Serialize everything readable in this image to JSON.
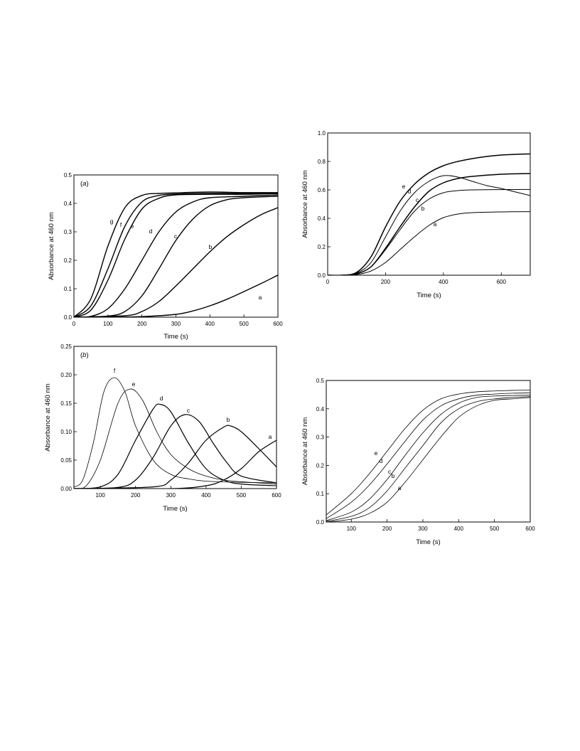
{
  "chart_data": [
    {
      "type": "line",
      "panel_label": "a",
      "xlabel": "Time (s)",
      "ylabel": "Absorbance at 460 nm",
      "xlim": [
        0,
        600
      ],
      "ylim": [
        0,
        0.5
      ],
      "xticks": [
        "0",
        "100",
        "200",
        "300",
        "400",
        "500",
        "600"
      ],
      "yticks": [
        "0.0",
        "0.1",
        "0.2",
        "0.3",
        "0.4",
        "0.5"
      ],
      "grid": false,
      "series": [
        {
          "name": "a",
          "x": [
            0,
            100,
            200,
            300,
            350,
            400,
            450,
            500,
            550,
            600
          ],
          "y": [
            0,
            0,
            0.002,
            0.01,
            0.022,
            0.04,
            0.063,
            0.09,
            0.118,
            0.148
          ]
        },
        {
          "name": "b",
          "x": [
            0,
            150,
            200,
            250,
            300,
            350,
            400,
            450,
            500,
            550,
            600
          ],
          "y": [
            0,
            0.005,
            0.02,
            0.055,
            0.11,
            0.17,
            0.23,
            0.283,
            0.325,
            0.36,
            0.385
          ]
        },
        {
          "name": "c",
          "x": [
            0,
            100,
            150,
            200,
            250,
            300,
            350,
            400,
            450,
            500,
            600
          ],
          "y": [
            0,
            0.004,
            0.02,
            0.075,
            0.17,
            0.27,
            0.345,
            0.392,
            0.413,
            0.42,
            0.425
          ]
        },
        {
          "name": "d",
          "x": [
            0,
            50,
            100,
            150,
            200,
            250,
            300,
            350,
            400,
            500,
            600
          ],
          "y": [
            0,
            0.003,
            0.03,
            0.1,
            0.2,
            0.3,
            0.37,
            0.405,
            0.42,
            0.425,
            0.43
          ]
        },
        {
          "name": "e",
          "x": [
            0,
            50,
            100,
            150,
            200,
            250,
            300,
            400,
            500,
            600
          ],
          "y": [
            0,
            0.025,
            0.13,
            0.275,
            0.38,
            0.418,
            0.43,
            0.432,
            0.432,
            0.435
          ]
        },
        {
          "name": "f",
          "x": [
            0,
            50,
            100,
            150,
            200,
            250,
            300,
            400,
            500,
            600
          ],
          "y": [
            0,
            0.04,
            0.17,
            0.32,
            0.405,
            0.428,
            0.433,
            0.435,
            0.435,
            0.435
          ]
        },
        {
          "name": "g",
          "x": [
            0,
            50,
            100,
            150,
            200,
            250,
            300,
            400,
            500,
            600
          ],
          "y": [
            0,
            0.065,
            0.25,
            0.385,
            0.428,
            0.435,
            0.437,
            0.44,
            0.438,
            0.438
          ]
        }
      ]
    },
    {
      "type": "line",
      "panel_label": "",
      "xlabel": "Time (s)",
      "ylabel": "Absorbance at 460 nm",
      "xlim": [
        0,
        700
      ],
      "ylim": [
        0,
        1.0
      ],
      "xticks": [
        "0",
        "200",
        "400",
        "600"
      ],
      "yticks": [
        "0.0",
        "0.2",
        "0.4",
        "0.6",
        "0.8",
        "1.0"
      ],
      "grid": false,
      "series": [
        {
          "name": "a",
          "x": [
            0,
            50,
            100,
            150,
            200,
            250,
            300,
            350,
            400,
            450,
            500,
            600,
            700
          ],
          "y": [
            0,
            0,
            0.005,
            0.03,
            0.09,
            0.18,
            0.27,
            0.35,
            0.405,
            0.43,
            0.44,
            0.445,
            0.447
          ]
        },
        {
          "name": "b",
          "x": [
            0,
            50,
            100,
            150,
            200,
            250,
            300,
            350,
            400,
            450,
            500,
            600,
            700
          ],
          "y": [
            0,
            0,
            0.01,
            0.06,
            0.18,
            0.32,
            0.45,
            0.535,
            0.58,
            0.595,
            0.6,
            0.602,
            0.603
          ]
        },
        {
          "name": "c",
          "x": [
            0,
            50,
            100,
            150,
            200,
            250,
            300,
            350,
            400,
            450,
            500,
            600,
            700
          ],
          "y": [
            0,
            0,
            0.01,
            0.06,
            0.19,
            0.34,
            0.48,
            0.59,
            0.65,
            0.68,
            0.695,
            0.71,
            0.715
          ]
        },
        {
          "name": "d",
          "x": [
            0,
            50,
            100,
            150,
            200,
            250,
            300,
            350,
            400,
            450,
            500,
            550,
            600,
            650,
            700
          ],
          "y": [
            0,
            0,
            0.015,
            0.09,
            0.27,
            0.45,
            0.58,
            0.66,
            0.7,
            0.69,
            0.66,
            0.63,
            0.61,
            0.585,
            0.56
          ]
        },
        {
          "name": "e",
          "x": [
            0,
            50,
            100,
            150,
            200,
            250,
            300,
            350,
            400,
            450,
            500,
            550,
            600,
            650,
            700
          ],
          "y": [
            0,
            0,
            0.02,
            0.13,
            0.34,
            0.52,
            0.64,
            0.72,
            0.77,
            0.8,
            0.82,
            0.835,
            0.845,
            0.85,
            0.853
          ]
        }
      ]
    },
    {
      "type": "line",
      "panel_label": "b",
      "xlabel": "Time (s)",
      "ylabel": "Absorbance at 460 nm",
      "xlim": [
        25,
        600
      ],
      "ylim": [
        0,
        0.25
      ],
      "xticks": [
        "100",
        "200",
        "300",
        "400",
        "500",
        "600"
      ],
      "yticks": [
        "0.00",
        "0.05",
        "0.10",
        "0.15",
        "0.20",
        "0.25"
      ],
      "grid": false,
      "series": [
        {
          "name": "a",
          "x": [
            25,
            300,
            400,
            450,
            500,
            550,
            600
          ],
          "y": [
            0,
            0,
            0.005,
            0.015,
            0.035,
            0.065,
            0.085
          ]
        },
        {
          "name": "b",
          "x": [
            25,
            250,
            300,
            350,
            400,
            450,
            470,
            500,
            550,
            600
          ],
          "y": [
            0,
            0.003,
            0.015,
            0.045,
            0.085,
            0.108,
            0.11,
            0.1,
            0.07,
            0.038
          ]
        },
        {
          "name": "c",
          "x": [
            25,
            150,
            200,
            250,
            300,
            340,
            380,
            420,
            460,
            500,
            600
          ],
          "y": [
            0,
            0.002,
            0.015,
            0.055,
            0.11,
            0.13,
            0.118,
            0.08,
            0.045,
            0.022,
            0.01
          ]
        },
        {
          "name": "d",
          "x": [
            25,
            100,
            150,
            200,
            250,
            270,
            300,
            350,
            400,
            450,
            500,
            600
          ],
          "y": [
            0,
            0.003,
            0.025,
            0.085,
            0.14,
            0.148,
            0.135,
            0.08,
            0.035,
            0.015,
            0.008,
            0.005
          ]
        },
        {
          "name": "e",
          "x": [
            25,
            60,
            100,
            150,
            185,
            220,
            260,
            300,
            350,
            400,
            450,
            500,
            600
          ],
          "y": [
            0,
            0.005,
            0.05,
            0.15,
            0.175,
            0.155,
            0.1,
            0.06,
            0.035,
            0.022,
            0.015,
            0.012,
            0.008
          ]
        },
        {
          "name": "f",
          "x": [
            25,
            50,
            80,
            110,
            140,
            170,
            200,
            250,
            300,
            350,
            400,
            500,
            600
          ],
          "y": [
            0.003,
            0.015,
            0.08,
            0.17,
            0.195,
            0.17,
            0.11,
            0.05,
            0.025,
            0.017,
            0.013,
            0.011,
            0.01
          ]
        }
      ]
    },
    {
      "type": "line",
      "panel_label": "",
      "xlabel": "Time (s)",
      "ylabel": "Absorbance at 460 nm",
      "xlim": [
        30,
        600
      ],
      "ylim": [
        0,
        0.5
      ],
      "xticks": [
        "100",
        "200",
        "300",
        "400",
        "500",
        "600"
      ],
      "yticks": [
        "0.0",
        "0.1",
        "0.2",
        "0.3",
        "0.4",
        "0.5"
      ],
      "grid": false,
      "series": [
        {
          "name": "a",
          "x": [
            30,
            100,
            150,
            200,
            250,
            300,
            350,
            400,
            450,
            500,
            550,
            600
          ],
          "y": [
            0,
            0.01,
            0.03,
            0.07,
            0.14,
            0.22,
            0.3,
            0.37,
            0.41,
            0.43,
            0.435,
            0.44
          ]
        },
        {
          "name": "b",
          "x": [
            30,
            100,
            150,
            200,
            250,
            300,
            350,
            400,
            450,
            500,
            550,
            600
          ],
          "y": [
            0.002,
            0.02,
            0.05,
            0.11,
            0.19,
            0.27,
            0.35,
            0.4,
            0.425,
            0.435,
            0.44,
            0.443
          ]
        },
        {
          "name": "c",
          "x": [
            30,
            100,
            150,
            200,
            250,
            300,
            350,
            400,
            450,
            500,
            550,
            600
          ],
          "y": [
            0.005,
            0.035,
            0.08,
            0.15,
            0.235,
            0.315,
            0.38,
            0.42,
            0.44,
            0.445,
            0.447,
            0.448
          ]
        },
        {
          "name": "d",
          "x": [
            30,
            100,
            150,
            200,
            250,
            300,
            350,
            400,
            450,
            500,
            550,
            600
          ],
          "y": [
            0.012,
            0.07,
            0.13,
            0.205,
            0.285,
            0.36,
            0.41,
            0.435,
            0.448,
            0.452,
            0.455,
            0.456
          ]
        },
        {
          "name": "e",
          "x": [
            30,
            100,
            150,
            200,
            250,
            300,
            350,
            400,
            450,
            500,
            550,
            600
          ],
          "y": [
            0.025,
            0.1,
            0.17,
            0.25,
            0.33,
            0.395,
            0.435,
            0.452,
            0.46,
            0.463,
            0.465,
            0.466
          ]
        }
      ]
    }
  ]
}
